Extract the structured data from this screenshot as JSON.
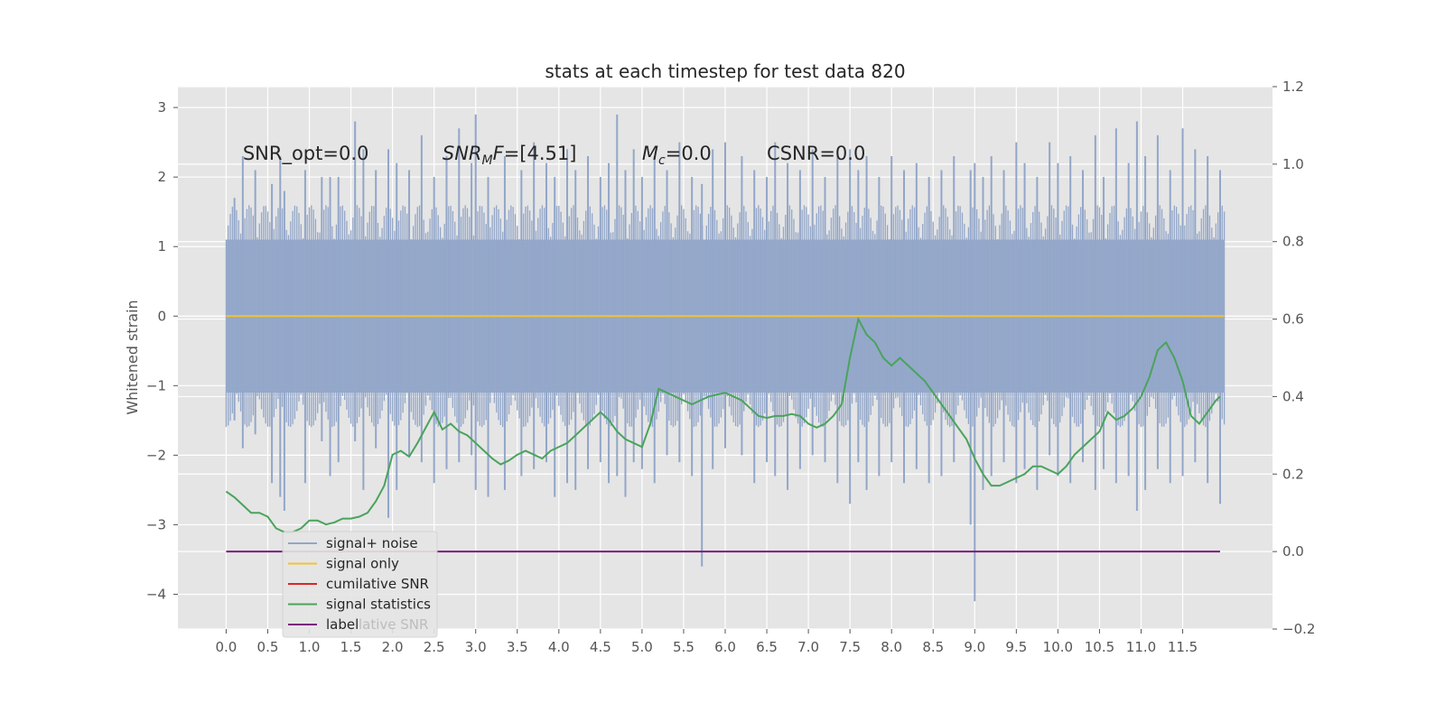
{
  "chart_data": {
    "type": "line",
    "title": "stats at each timestep for test data 820",
    "ylabel": "Whitened strain",
    "xlabel": "",
    "x_ticks": [
      "0.0",
      "0.5",
      "1.0",
      "1.5",
      "2.0",
      "2.5",
      "3.0",
      "3.5",
      "4.0",
      "4.5",
      "5.0",
      "5.5",
      "6.0",
      "6.5",
      "7.0",
      "7.5",
      "8.0",
      "8.5",
      "9.0",
      "9.5",
      "10.0",
      "10.5",
      "11.0",
      "11.5"
    ],
    "xlim": [
      -0.58,
      12.58
    ],
    "ylim_left": [
      -4.5,
      3.3
    ],
    "ylim_right": [
      -0.2,
      1.2
    ],
    "y_ticks_left": [
      "3",
      "2",
      "1",
      "0",
      "−1",
      "−2",
      "−3",
      "−4"
    ],
    "y_ticks_right": [
      "1.2",
      "1.0",
      "0.8",
      "0.6",
      "0.4",
      "0.2",
      "0.0",
      "−0.2"
    ],
    "grid": true,
    "legend_position": "lower-left",
    "annotations": [
      {
        "parts": [
          {
            "text": "SNR_opt=0.0",
            "italic": false
          }
        ]
      },
      {
        "parts": [
          {
            "text": "SNR",
            "italic": true
          },
          {
            "text": "M",
            "italic": true,
            "sub": true
          },
          {
            "text": "F",
            "italic": true
          },
          {
            "text": "=[4.51]",
            "italic": false
          }
        ]
      },
      {
        "parts": [
          {
            "text": "M",
            "italic": true
          },
          {
            "text": "c",
            "italic": true,
            "sub": true
          },
          {
            "text": "=0.0",
            "italic": false
          }
        ]
      },
      {
        "parts": [
          {
            "text": "CSNR=0.0",
            "italic": false
          }
        ]
      }
    ],
    "annotation_x": [
      0.2,
      2.6,
      5.0,
      6.5
    ],
    "annotation_y": 2.25,
    "noise": {
      "x_range": [
        0.0,
        12.0
      ],
      "band_low": -1.1,
      "band_high": 1.1,
      "spike_x": [
        0.1,
        0.2,
        0.35,
        0.55,
        0.65,
        0.7,
        0.95,
        1.15,
        1.25,
        1.35,
        1.55,
        1.65,
        1.8,
        1.95,
        2.05,
        2.2,
        2.35,
        2.5,
        2.65,
        2.8,
        2.95,
        3.0,
        3.15,
        3.35,
        3.55,
        3.7,
        3.85,
        3.95,
        4.1,
        4.2,
        4.35,
        4.5,
        4.6,
        4.7,
        4.8,
        4.9,
        5.0,
        5.15,
        5.3,
        5.45,
        5.6,
        5.72,
        5.85,
        6.0,
        6.2,
        6.35,
        6.5,
        6.6,
        6.75,
        6.9,
        7.05,
        7.2,
        7.35,
        7.5,
        7.6,
        7.7,
        7.85,
        8.0,
        8.15,
        8.3,
        8.45,
        8.6,
        8.75,
        8.95,
        9.0,
        9.1,
        9.2,
        9.35,
        9.5,
        9.6,
        9.75,
        9.9,
        10.0,
        10.15,
        10.3,
        10.45,
        10.55,
        10.7,
        10.85,
        10.95,
        11.05,
        11.2,
        11.35,
        11.5,
        11.65,
        11.8,
        11.95
      ],
      "spike_hi": [
        1.7,
        2.3,
        2.1,
        1.9,
        2.3,
        1.8,
        2.1,
        2.0,
        2.0,
        2.0,
        2.8,
        2.4,
        2.1,
        2.4,
        2.2,
        2.1,
        2.6,
        2.0,
        2.3,
        2.7,
        2.2,
        2.9,
        2.0,
        2.3,
        2.1,
        2.5,
        2.2,
        2.0,
        2.4,
        2.1,
        2.3,
        2.0,
        2.2,
        2.9,
        2.1,
        2.4,
        2.0,
        2.3,
        2.1,
        2.5,
        2.0,
        1.9,
        2.4,
        2.5,
        2.3,
        2.1,
        2.0,
        2.5,
        2.2,
        2.1,
        2.4,
        2.0,
        2.3,
        2.4,
        2.1,
        2.3,
        2.0,
        2.3,
        2.1,
        2.2,
        2.0,
        2.1,
        2.3,
        2.1,
        2.2,
        2.0,
        2.3,
        2.1,
        2.5,
        2.2,
        2.0,
        2.5,
        2.2,
        2.3,
        2.1,
        2.6,
        2.0,
        2.7,
        2.2,
        2.8,
        2.3,
        2.6,
        2.1,
        2.7,
        2.4,
        2.3,
        2.1
      ],
      "spike_lo": [
        -1.5,
        -1.9,
        -1.7,
        -2.4,
        -2.6,
        -2.8,
        -2.4,
        -1.8,
        -2.3,
        -2.1,
        -1.8,
        -2.5,
        -1.9,
        -2.9,
        -2.5,
        -2.0,
        -2.1,
        -2.4,
        -2.2,
        -2.1,
        -2.0,
        -2.5,
        -2.6,
        -2.5,
        -2.3,
        -2.2,
        -2.1,
        -2.6,
        -2.4,
        -2.5,
        -2.2,
        -2.1,
        -2.4,
        -2.3,
        -2.6,
        -2.1,
        -2.2,
        -2.4,
        -2.0,
        -2.1,
        -2.3,
        -3.6,
        -2.2,
        -1.9,
        -2.0,
        -2.4,
        -2.1,
        -2.3,
        -2.5,
        -2.2,
        -2.0,
        -2.1,
        -2.4,
        -2.7,
        -2.1,
        -2.5,
        -2.3,
        -2.1,
        -2.4,
        -2.2,
        -2.4,
        -2.3,
        -2.1,
        -3.0,
        -4.1,
        -2.5,
        -2.3,
        -2.1,
        -2.4,
        -2.2,
        -2.5,
        -2.0,
        -2.3,
        -2.4,
        -2.1,
        -2.5,
        -2.2,
        -2.4,
        -2.3,
        -2.8,
        -2.5,
        -2.2,
        -2.4,
        -2.3,
        -2.1,
        -2.4,
        -2.7
      ]
    },
    "series": [
      {
        "name": "signal+ noise",
        "axis": "left",
        "color": "#92a6c9",
        "style": "noise"
      },
      {
        "name": "signal only",
        "axis": "left",
        "color": "#f1c232",
        "x": [
          0.0,
          12.0
        ],
        "y": [
          0.0,
          0.0
        ]
      },
      {
        "name": "cumilative SNR",
        "axis": "right",
        "color": "#d62728",
        "x": [],
        "y": []
      },
      {
        "name": "signal statistics",
        "axis": "right",
        "color": "#4aa35c",
        "x": [
          0.0,
          0.1,
          0.2,
          0.3,
          0.4,
          0.5,
          0.6,
          0.7,
          0.8,
          0.9,
          1.0,
          1.1,
          1.2,
          1.3,
          1.4,
          1.5,
          1.6,
          1.7,
          1.8,
          1.9,
          2.0,
          2.1,
          2.2,
          2.3,
          2.4,
          2.5,
          2.6,
          2.7,
          2.8,
          2.9,
          3.0,
          3.1,
          3.2,
          3.3,
          3.4,
          3.5,
          3.6,
          3.7,
          3.8,
          3.9,
          4.0,
          4.1,
          4.2,
          4.3,
          4.4,
          4.5,
          4.6,
          4.7,
          4.8,
          4.9,
          5.0,
          5.1,
          5.2,
          5.3,
          5.4,
          5.5,
          5.6,
          5.7,
          5.8,
          5.9,
          6.0,
          6.1,
          6.2,
          6.3,
          6.4,
          6.5,
          6.6,
          6.7,
          6.8,
          6.9,
          7.0,
          7.1,
          7.2,
          7.3,
          7.4,
          7.5,
          7.6,
          7.7,
          7.8,
          7.9,
          8.0,
          8.1,
          8.2,
          8.3,
          8.4,
          8.5,
          8.6,
          8.7,
          8.8,
          8.9,
          9.0,
          9.1,
          9.2,
          9.3,
          9.4,
          9.5,
          9.6,
          9.7,
          9.8,
          9.9,
          10.0,
          10.1,
          10.2,
          10.3,
          10.4,
          10.5,
          10.6,
          10.7,
          10.8,
          10.9,
          11.0,
          11.1,
          11.2,
          11.3,
          11.4,
          11.5,
          11.6,
          11.7,
          11.8,
          11.9,
          11.95
        ],
        "y": [
          0.155,
          0.14,
          0.12,
          0.1,
          0.1,
          0.09,
          0.06,
          0.05,
          0.05,
          0.06,
          0.08,
          0.08,
          0.07,
          0.075,
          0.085,
          0.085,
          0.09,
          0.1,
          0.13,
          0.17,
          0.25,
          0.26,
          0.245,
          0.28,
          0.32,
          0.36,
          0.315,
          0.33,
          0.31,
          0.3,
          0.28,
          0.26,
          0.24,
          0.225,
          0.235,
          0.25,
          0.26,
          0.25,
          0.24,
          0.26,
          0.27,
          0.28,
          0.3,
          0.32,
          0.34,
          0.36,
          0.34,
          0.31,
          0.29,
          0.28,
          0.27,
          0.33,
          0.42,
          0.41,
          0.4,
          0.39,
          0.38,
          0.39,
          0.4,
          0.405,
          0.41,
          0.4,
          0.39,
          0.37,
          0.35,
          0.345,
          0.35,
          0.35,
          0.355,
          0.35,
          0.33,
          0.32,
          0.33,
          0.35,
          0.38,
          0.5,
          0.6,
          0.56,
          0.54,
          0.5,
          0.48,
          0.5,
          0.48,
          0.46,
          0.44,
          0.41,
          0.38,
          0.35,
          0.32,
          0.29,
          0.24,
          0.2,
          0.17,
          0.17,
          0.18,
          0.19,
          0.2,
          0.22,
          0.22,
          0.21,
          0.2,
          0.22,
          0.25,
          0.27,
          0.29,
          0.31,
          0.36,
          0.34,
          0.35,
          0.37,
          0.4,
          0.45,
          0.52,
          0.54,
          0.5,
          0.44,
          0.35,
          0.33,
          0.36,
          0.39,
          0.4
        ]
      },
      {
        "name": "label",
        "axis": "right",
        "color": "#7b1c7e",
        "x": [
          0.0,
          11.95
        ],
        "y": [
          0.0,
          0.0
        ]
      }
    ],
    "legend_ghost_text": "lative SNR"
  }
}
